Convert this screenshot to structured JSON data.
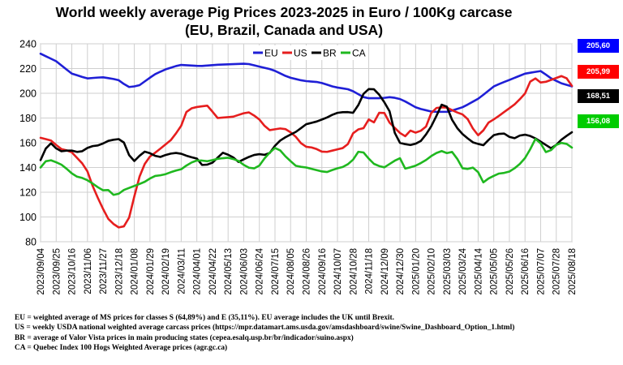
{
  "chart_data": {
    "type": "line",
    "title_line1": "World weekly average Pig Prices 2023-2025 in Euro / 100Kg carcase",
    "title_line2": "(EU, Brazil, Canada and USA)",
    "xlabel": "",
    "ylabel": "",
    "ylim": [
      80,
      240
    ],
    "yticks": [
      80,
      100,
      120,
      140,
      160,
      180,
      200,
      220,
      240
    ],
    "grid": true,
    "legend_position": "top-center",
    "x_start": "2023-09-04",
    "x_step_days": 7,
    "num_weeks": 103,
    "xtick_labels": [
      "2023/09/04",
      "2023/09/25",
      "2023/10/16",
      "2023/11/06",
      "2023/11/27",
      "2023/12/18",
      "2024/01/08",
      "2024/01/29",
      "2024/02/19",
      "2024/03/11",
      "2024/04/01",
      "2024/04/22",
      "2024/05/13",
      "2024/06/03",
      "2024/06/24",
      "2024/07/15",
      "2024/08/05",
      "2024/08/26",
      "2024/09/16",
      "2024/10/07",
      "2024/10/28",
      "2024/11/18",
      "2024/12/09",
      "2024/12/30",
      "2025/01/20",
      "2025/02/10",
      "2025/03/03",
      "2025/03/24",
      "2025/04/14",
      "2025/05/05",
      "2025/05/26",
      "2025/06/16",
      "2025/07/07",
      "2025/07/28",
      "2025/08/18"
    ],
    "series": [
      {
        "name": "EU",
        "color": "#1f1fd6",
        "anchors": [
          [
            0,
            232
          ],
          [
            3,
            226
          ],
          [
            6,
            216
          ],
          [
            9,
            212
          ],
          [
            12,
            213
          ],
          [
            15,
            211
          ],
          [
            17,
            205
          ],
          [
            19,
            206
          ],
          [
            22,
            215
          ],
          [
            24,
            219
          ],
          [
            27,
            223
          ],
          [
            31,
            222
          ],
          [
            34,
            223
          ],
          [
            40,
            224
          ],
          [
            45,
            219
          ],
          [
            48,
            213
          ],
          [
            51,
            210
          ],
          [
            54,
            209
          ],
          [
            57,
            205
          ],
          [
            60,
            203
          ],
          [
            63,
            196
          ],
          [
            66,
            196
          ],
          [
            68,
            197
          ],
          [
            70,
            195
          ],
          [
            73,
            188
          ],
          [
            76,
            185
          ],
          [
            79,
            185
          ],
          [
            82,
            189
          ],
          [
            85,
            196
          ],
          [
            88,
            206
          ],
          [
            91,
            211
          ],
          [
            94,
            216
          ],
          [
            97,
            218
          ],
          [
            99,
            212
          ],
          [
            101,
            208
          ],
          [
            103,
            205.6
          ]
        ]
      },
      {
        "name": "US",
        "color": "#e61e1e",
        "anchors": [
          [
            0,
            164
          ],
          [
            2,
            162
          ],
          [
            4,
            155
          ],
          [
            6,
            153
          ],
          [
            9,
            140
          ],
          [
            10,
            128
          ],
          [
            11,
            118
          ],
          [
            12,
            110
          ],
          [
            13,
            100
          ],
          [
            14,
            96
          ],
          [
            15,
            92
          ],
          [
            16,
            91
          ],
          [
            17,
            94
          ],
          [
            18,
            105
          ],
          [
            19,
            127
          ],
          [
            21,
            147
          ],
          [
            23,
            153
          ],
          [
            26,
            163
          ],
          [
            28,
            175
          ],
          [
            29,
            187
          ],
          [
            31,
            189
          ],
          [
            33,
            190
          ],
          [
            35,
            180
          ],
          [
            38,
            181
          ],
          [
            41,
            185
          ],
          [
            43,
            180
          ],
          [
            45,
            170
          ],
          [
            48,
            172
          ],
          [
            50,
            167
          ],
          [
            52,
            157
          ],
          [
            54,
            156
          ],
          [
            56,
            152
          ],
          [
            58,
            154
          ],
          [
            60,
            156
          ],
          [
            61,
            160
          ],
          [
            62,
            170
          ],
          [
            64,
            172
          ],
          [
            65,
            180
          ],
          [
            66,
            176
          ],
          [
            67,
            185
          ],
          [
            68,
            184
          ],
          [
            69,
            176
          ],
          [
            70,
            172
          ],
          [
            71,
            168
          ],
          [
            72,
            165
          ],
          [
            73,
            170
          ],
          [
            74,
            168
          ],
          [
            76,
            171
          ],
          [
            77,
            183
          ],
          [
            78,
            188
          ],
          [
            80,
            189
          ],
          [
            82,
            185
          ],
          [
            84,
            182
          ],
          [
            85,
            175
          ],
          [
            86,
            167
          ],
          [
            87,
            165
          ],
          [
            88,
            175
          ],
          [
            90,
            180
          ],
          [
            92,
            186
          ],
          [
            94,
            192
          ],
          [
            96,
            201
          ],
          [
            97,
            212
          ],
          [
            98,
            212
          ],
          [
            99,
            208
          ],
          [
            101,
            211
          ],
          [
            103,
            214
          ],
          [
            104,
            212
          ],
          [
            105,
            206.0
          ]
        ]
      },
      {
        "name": "BR",
        "color": "#000000",
        "anchors": [
          [
            0,
            146
          ],
          [
            1,
            155
          ],
          [
            2,
            160
          ],
          [
            3,
            156
          ],
          [
            4,
            153
          ],
          [
            6,
            154
          ],
          [
            8,
            152
          ],
          [
            10,
            157
          ],
          [
            12,
            158
          ],
          [
            14,
            162
          ],
          [
            16,
            163
          ],
          [
            17,
            160
          ],
          [
            18,
            150
          ],
          [
            19,
            145
          ],
          [
            21,
            153
          ],
          [
            22,
            152
          ],
          [
            24,
            148
          ],
          [
            26,
            151
          ],
          [
            28,
            152
          ],
          [
            30,
            149
          ],
          [
            32,
            147
          ],
          [
            33,
            141
          ],
          [
            35,
            144
          ],
          [
            37,
            152
          ],
          [
            39,
            149
          ],
          [
            40,
            144
          ],
          [
            42,
            148
          ],
          [
            44,
            151
          ],
          [
            46,
            150
          ],
          [
            47,
            153
          ],
          [
            48,
            160
          ],
          [
            50,
            165
          ],
          [
            52,
            169
          ],
          [
            54,
            175
          ],
          [
            56,
            177
          ],
          [
            58,
            180
          ],
          [
            60,
            184
          ],
          [
            62,
            185
          ],
          [
            64,
            184
          ],
          [
            65,
            195
          ],
          [
            66,
            202
          ],
          [
            67,
            204
          ],
          [
            68,
            203
          ],
          [
            69,
            198
          ],
          [
            70,
            192
          ],
          [
            71,
            185
          ],
          [
            72,
            168
          ],
          [
            73,
            160
          ],
          [
            75,
            158
          ],
          [
            77,
            160
          ],
          [
            79,
            170
          ],
          [
            81,
            186
          ],
          [
            82,
            195
          ],
          [
            84,
            175
          ],
          [
            86,
            166
          ],
          [
            88,
            160
          ],
          [
            90,
            158
          ],
          [
            92,
            166
          ],
          [
            94,
            168
          ],
          [
            96,
            163
          ],
          [
            98,
            167
          ],
          [
            100,
            165
          ],
          [
            102,
            160
          ],
          [
            104,
            155
          ],
          [
            106,
            163
          ],
          [
            108,
            168.5
          ]
        ]
      },
      {
        "name": "CA",
        "color": "#1fb81f",
        "anchors": [
          [
            0,
            140
          ],
          [
            1,
            145
          ],
          [
            2,
            146
          ],
          [
            4,
            143
          ],
          [
            5,
            140
          ],
          [
            7,
            133
          ],
          [
            9,
            131
          ],
          [
            11,
            126
          ],
          [
            12,
            123
          ],
          [
            13,
            121
          ],
          [
            14,
            122
          ],
          [
            15,
            117
          ],
          [
            16,
            119
          ],
          [
            17,
            122
          ],
          [
            19,
            125
          ],
          [
            21,
            128
          ],
          [
            23,
            133
          ],
          [
            25,
            134
          ],
          [
            27,
            137
          ],
          [
            29,
            139
          ],
          [
            30,
            143
          ],
          [
            32,
            146
          ],
          [
            34,
            145
          ],
          [
            36,
            147
          ],
          [
            38,
            148
          ],
          [
            40,
            146
          ],
          [
            42,
            140
          ],
          [
            44,
            139
          ],
          [
            46,
            150
          ],
          [
            48,
            157
          ],
          [
            50,
            148
          ],
          [
            52,
            141
          ],
          [
            54,
            140
          ],
          [
            56,
            138
          ],
          [
            58,
            136
          ],
          [
            60,
            139
          ],
          [
            62,
            141
          ],
          [
            64,
            148
          ],
          [
            65,
            156
          ],
          [
            66,
            150
          ],
          [
            67,
            146
          ],
          [
            68,
            142
          ],
          [
            70,
            140
          ],
          [
            71,
            143
          ],
          [
            73,
            148
          ],
          [
            74,
            139
          ],
          [
            76,
            141
          ],
          [
            78,
            145
          ],
          [
            80,
            151
          ],
          [
            82,
            154
          ],
          [
            83,
            150
          ],
          [
            84,
            154
          ],
          [
            85,
            144
          ],
          [
            86,
            138
          ],
          [
            88,
            140
          ],
          [
            89,
            136
          ],
          [
            90,
            128
          ],
          [
            91,
            131
          ],
          [
            93,
            135
          ],
          [
            95,
            136
          ],
          [
            97,
            141
          ],
          [
            99,
            150
          ],
          [
            100,
            159
          ],
          [
            101,
            166
          ],
          [
            102,
            156
          ],
          [
            103,
            151
          ],
          [
            104,
            155
          ],
          [
            105,
            159
          ],
          [
            106,
            160
          ],
          [
            107,
            159
          ],
          [
            108,
            156.1
          ]
        ]
      }
    ],
    "final_values": [
      {
        "series": "EU",
        "label": "205,60",
        "bg": "#0000ff",
        "fg": "#ffffff"
      },
      {
        "series": "US",
        "label": "205,99",
        "bg": "#ff0000",
        "fg": "#ffffff"
      },
      {
        "series": "BR",
        "label": "168,51",
        "bg": "#000000",
        "fg": "#ffffff"
      },
      {
        "series": "CA",
        "label": "156,08",
        "bg": "#00cc00",
        "fg": "#ffffff"
      }
    ]
  },
  "notes": [
    "EU = weighted average of MS prices for classes S (64,89%) and E (35,11%). EU average includes the UK until Brexit.",
    "US = weekly USDA national weighted average carcass prices (https://mpr.datamart.ams.usda.gov/amsdashboard/swine/Swine_Dashboard_Option_1.html)",
    "BR = average of Valor Vista prices in main producing states (cepea.esalq.usp.br/br/indicador/suino.aspx)",
    "CA = Quebec Index 100 Hogs Weighted Average prices (agr.gc.ca)"
  ]
}
